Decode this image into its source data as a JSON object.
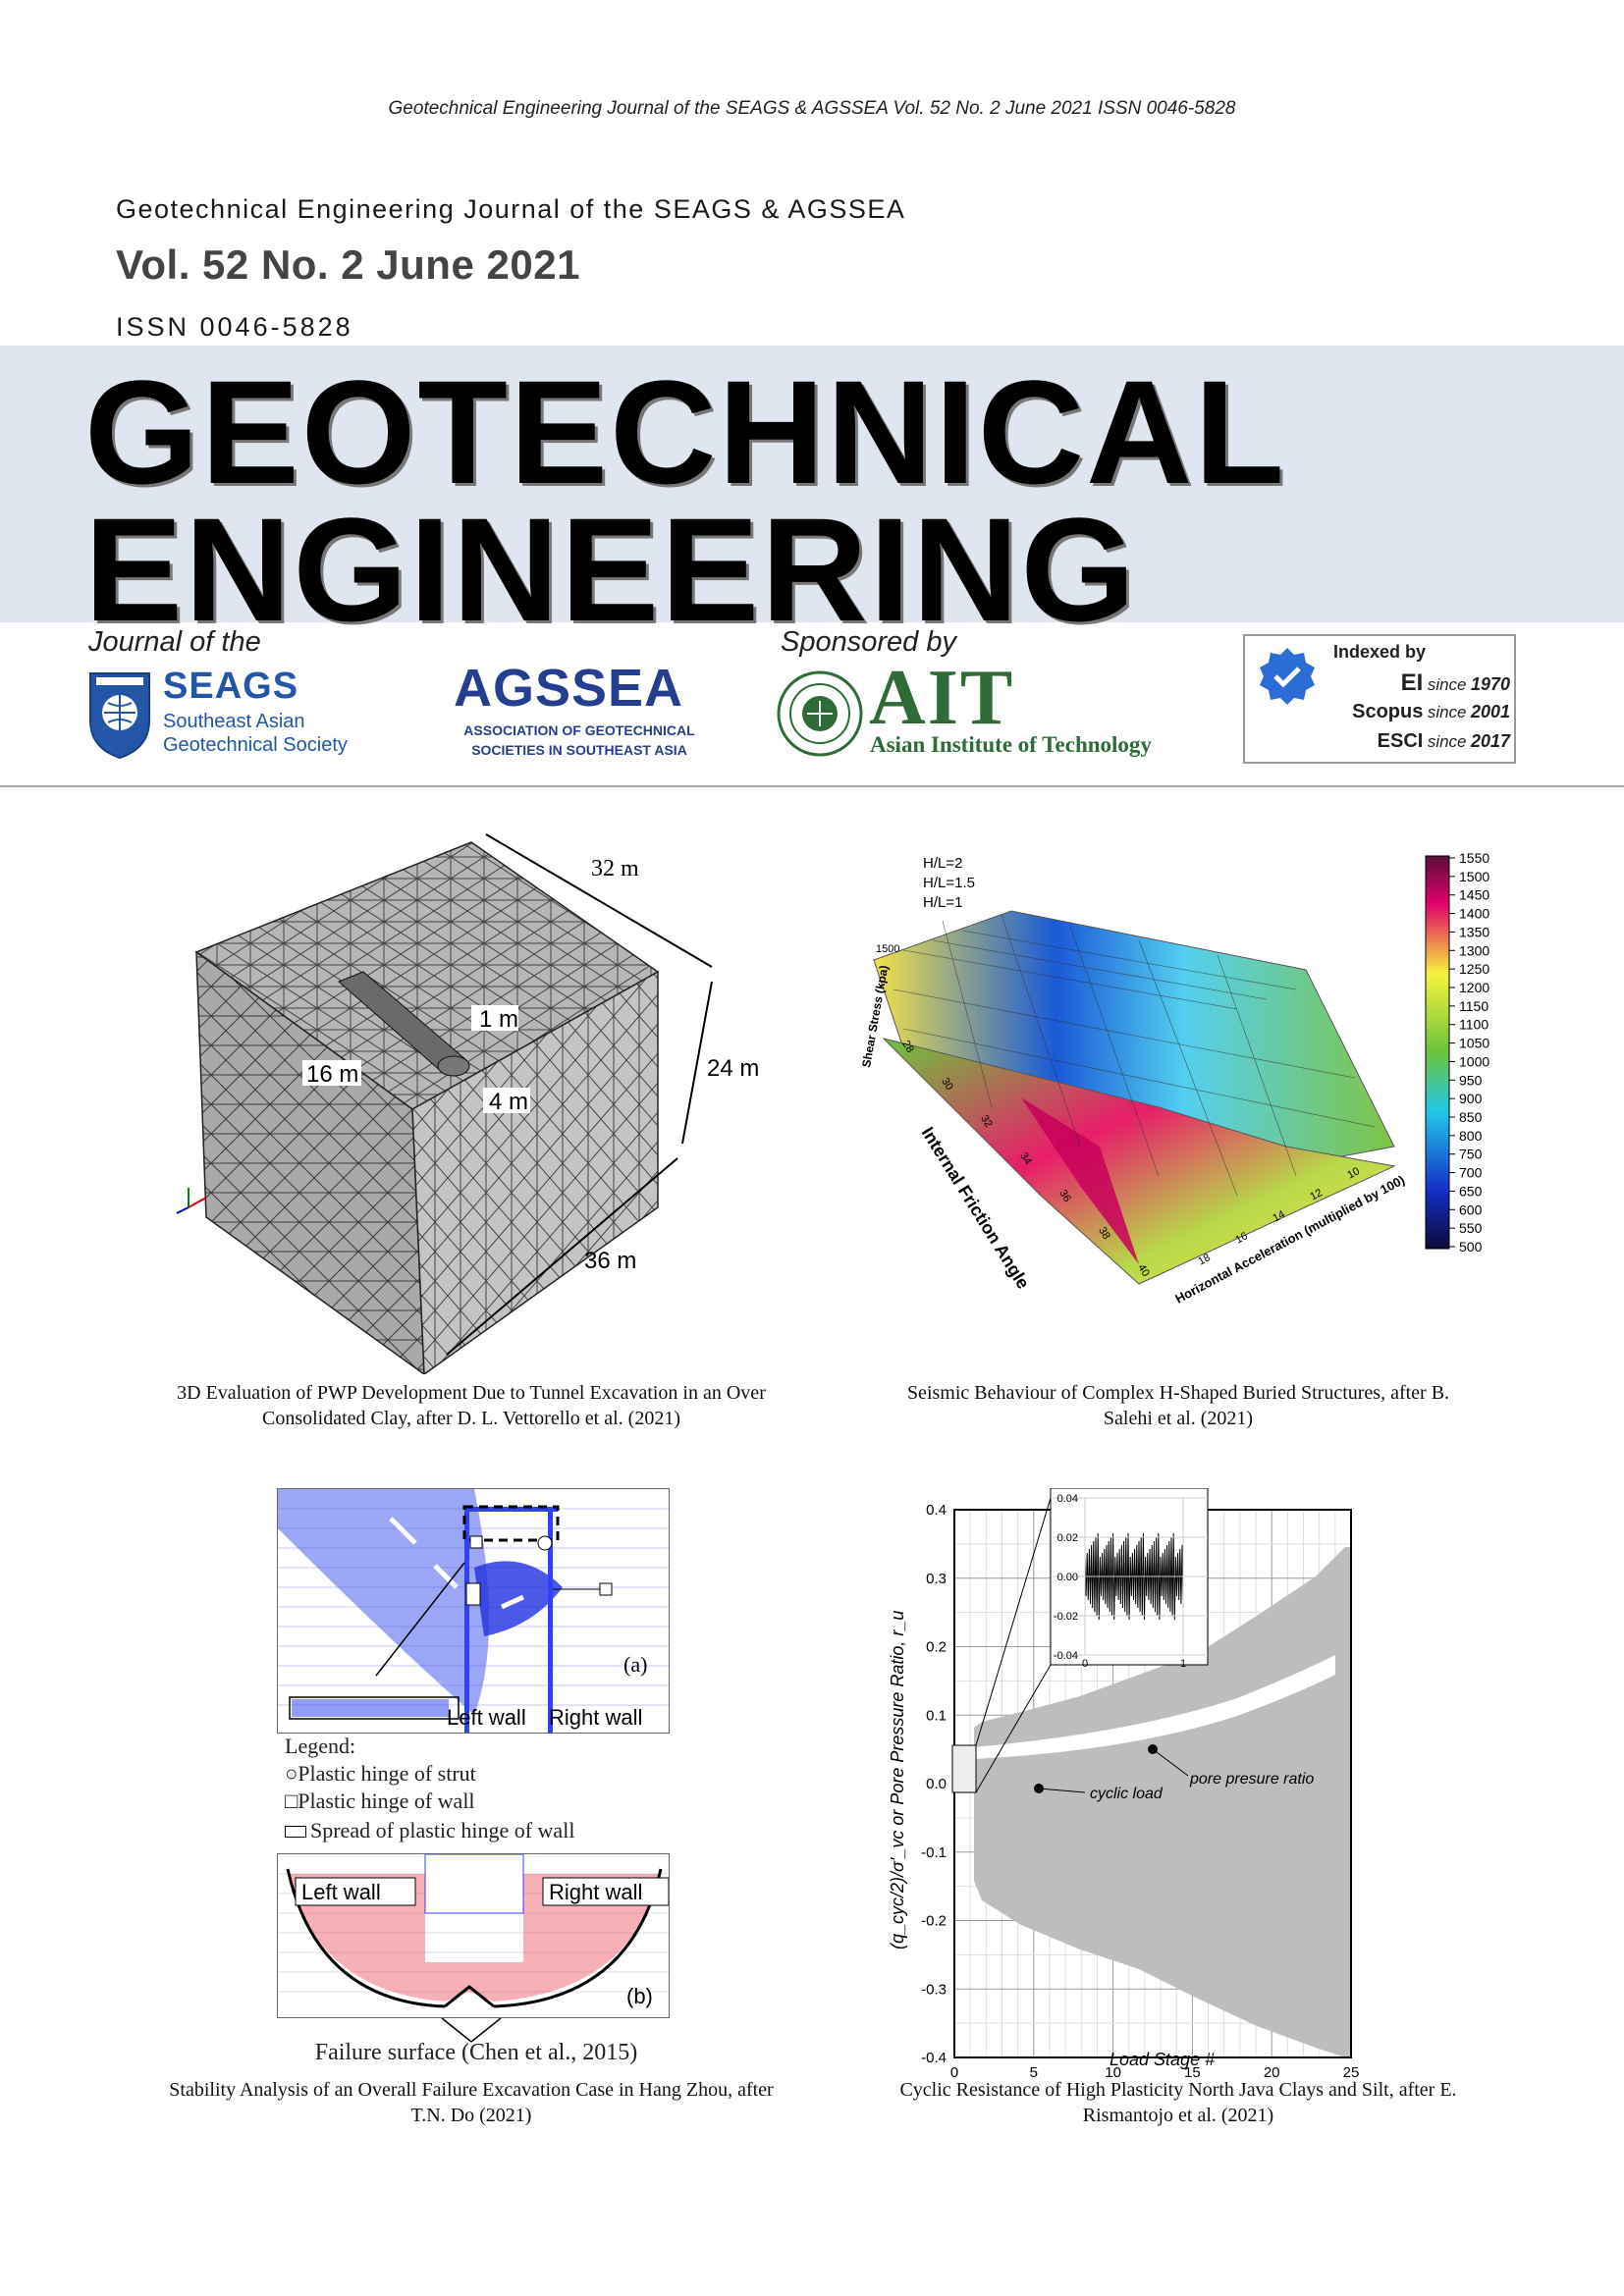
{
  "header": {
    "top_line": "Geotechnical Engineering Journal of the SEAGS & AGSSEA Vol. 52 No. 2 June 2021 ISSN 0046-5828",
    "journal_name": "Geotechnical Engineering Journal of the SEAGS & AGSSEA",
    "volume": "Vol. 52 No. 2 June 2021",
    "issn": "ISSN 0046-5828"
  },
  "title": {
    "line1": "GEOTECHNICAL",
    "line2": "ENGINEERING"
  },
  "sponsors": {
    "journal_of": "Journal of the",
    "sponsored_by": "Sponsored by",
    "seags": {
      "name": "SEAGS",
      "line1": "Southeast Asian",
      "line2": "Geotechnical Society"
    },
    "agssea": {
      "name": "AGSSEA",
      "line1": "ASSOCIATION OF GEOTECHNICAL",
      "line2": "SOCIETIES IN SOUTHEAST ASIA"
    },
    "ait": {
      "name": "AIT",
      "line1": "Asian Institute of Technology"
    },
    "indexed": {
      "title": "Indexed by",
      "rows": [
        {
          "name": "EI",
          "since": "since",
          "year": "1970"
        },
        {
          "name": "Scopus",
          "since": "since",
          "year": "2001"
        },
        {
          "name": "ESCI",
          "since": "since",
          "year": "2017"
        }
      ]
    }
  },
  "figures": {
    "fig1": {
      "labels": {
        "d32": "32 m",
        "d24": "24 m",
        "d36": "36 m",
        "d16": "16 m",
        "d1": "1 m",
        "d4": "4 m"
      },
      "caption_line1": "3D Evaluation of PWP Development Due to Tunnel Excavation in an Over",
      "caption_line2": "Consolidated Clay, after D. L. Vettorello et al. (2021)"
    },
    "fig2": {
      "legend": [
        "H/L=2",
        "H/L=1.5",
        "H/L=1"
      ],
      "z_label": "Shear Stress (kpa)",
      "z_top": "1500",
      "x_label": "Internal Friction Angle",
      "x_ticks": [
        "28",
        "30",
        "32",
        "34",
        "36",
        "38",
        "40"
      ],
      "y_label": "Horizontal Acceleration (multiplied by 100)",
      "y_ticks": [
        "10",
        "12",
        "14",
        "16",
        "18"
      ],
      "colorbar": [
        "1550",
        "1500",
        "1450",
        "1400",
        "1350",
        "1300",
        "1250",
        "1200",
        "1150",
        "1100",
        "1050",
        "1000",
        "950",
        "900",
        "850",
        "800",
        "750",
        "700",
        "650",
        "600",
        "550",
        "500"
      ],
      "caption_line1": "Seismic Behaviour of Complex H-Shaped Buried Structures, after B.",
      "caption_line2": "Salehi et al. (2021)"
    },
    "fig3": {
      "panel_a": "(a)",
      "panel_b": "(b)",
      "left_wall": "Left wall",
      "right_wall": "Right wall",
      "legend_title": "Legend:",
      "legend_items": [
        "Plastic hinge of strut",
        "Plastic hinge of wall",
        "Spread of plastic hinge of wall"
      ],
      "failure_surface": "Failure surface (Chen et al., 2015)",
      "caption_line1": "Stability Analysis of an Overall Failure Excavation Case in Hang Zhou, after",
      "caption_line2": "T.N. Do (2021)"
    },
    "fig4": {
      "ylabel": "(q_cyc/2)/σ'_vc or Pore Pressure Ratio, r_u",
      "xlabel": "Load Stage #",
      "y_ticks": [
        "0.4",
        "0.3",
        "0.2",
        "0.1",
        "0.0",
        "-0.1",
        "-0.2",
        "-0.3",
        "-0.4"
      ],
      "x_ticks": [
        "0",
        "5",
        "10",
        "15",
        "20",
        "25"
      ],
      "inset_y_ticks": [
        "0.04",
        "0.02",
        "0.00",
        "-0.02",
        "-0.04"
      ],
      "inset_x_ticks": [
        "0",
        "1"
      ],
      "annot_pore": "pore presure ratio",
      "annot_cyclic": "cyclic load",
      "caption_line1": "Cyclic Resistance of High Plasticity North Java Clays and Silt, after E.",
      "caption_line2": "Rismantojo et al. (2021)"
    }
  },
  "colors": {
    "band": "#dfe6f0",
    "agssea_blue": "#243f8f",
    "ait_green": "#2f6b36",
    "seags_blue": "#2356a6"
  }
}
